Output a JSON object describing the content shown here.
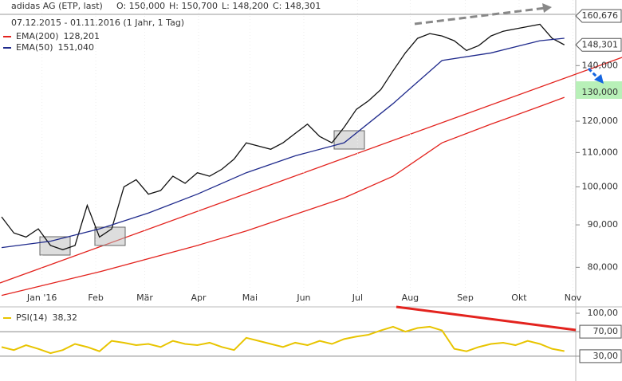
{
  "header": {
    "title": "adidas AG (ETP, last)",
    "ohlc": [
      "O: 150,000",
      "H: 150,700",
      "L: 148,200",
      "C: 148,301"
    ],
    "range": "07.12.2015 - 01.11.2016 (1 Jahr, 1 Tag)"
  },
  "chart_data": [
    {
      "type": "line",
      "log_scale": true,
      "ylim": [
        72000,
        165000
      ],
      "xlim": [
        0,
        46.8
      ],
      "yticks": [
        {
          "value": 80000,
          "label": "80,000"
        },
        {
          "value": 90000,
          "label": "90,000"
        },
        {
          "value": 100000,
          "label": "100,000"
        },
        {
          "value": 110000,
          "label": "110,000"
        },
        {
          "value": 120000,
          "label": "120,000"
        },
        {
          "value": 140000,
          "label": "140,000"
        }
      ],
      "xticks": [
        {
          "value": 3.3,
          "label": "Jan '16"
        },
        {
          "value": 7.7,
          "label": "Feb"
        },
        {
          "value": 11.7,
          "label": "Mär"
        },
        {
          "value": 16.1,
          "label": "Apr"
        },
        {
          "value": 20.3,
          "label": "Mai"
        },
        {
          "value": 24.7,
          "label": "Jun"
        },
        {
          "value": 29.1,
          "label": "Jul"
        },
        {
          "value": 33.4,
          "label": "Aug"
        },
        {
          "value": 37.9,
          "label": "Sep"
        },
        {
          "value": 42.3,
          "label": "Okt"
        },
        {
          "value": 46.7,
          "label": "Nov"
        }
      ],
      "price_tags": [
        {
          "value": 160676,
          "label": "160,676"
        },
        {
          "value": 148301,
          "label": "148,301"
        },
        {
          "value": 130000,
          "label": "130,000"
        }
      ],
      "series": [
        {
          "name": "adidas AG",
          "color": "#111111",
          "x": [
            0,
            1,
            2,
            3,
            4,
            5,
            6,
            7,
            8,
            9,
            10,
            11,
            12,
            13,
            14,
            15,
            16,
            17,
            18,
            19,
            20,
            21,
            22,
            23,
            24,
            25,
            26,
            27,
            28,
            29,
            30,
            31,
            32,
            33,
            34,
            35,
            36,
            37,
            38,
            39,
            40,
            41,
            42,
            43,
            44,
            45,
            46
          ],
          "values": [
            92000,
            88000,
            87000,
            89000,
            85000,
            84000,
            85000,
            95000,
            87000,
            89000,
            100000,
            102000,
            98000,
            99000,
            103000,
            101000,
            104000,
            103000,
            105000,
            108000,
            113000,
            112000,
            111000,
            113000,
            116000,
            119000,
            115000,
            113000,
            118000,
            124000,
            127000,
            131000,
            138000,
            145000,
            151000,
            153000,
            152000,
            150000,
            146000,
            148000,
            152000,
            154000,
            155000,
            156000,
            157000,
            151000,
            148301
          ]
        },
        {
          "name": "EMA(200)",
          "legend_value": "128,201",
          "color": "#e3231e",
          "x": [
            0,
            8,
            16,
            20,
            28,
            32,
            36,
            40,
            44,
            46
          ],
          "values": [
            74000,
            79000,
            85000,
            88500,
            97000,
            103000,
            113000,
            119000,
            125000,
            128201
          ]
        },
        {
          "name": "EMA(50)",
          "legend_value": "151,040",
          "color": "#1f2a8c",
          "x": [
            0,
            4,
            8,
            12,
            16,
            20,
            24,
            28,
            32,
            36,
            40,
            44,
            46
          ],
          "values": [
            84500,
            86000,
            89000,
            93000,
            98000,
            104000,
            109000,
            113000,
            126000,
            142000,
            145000,
            150000,
            151040
          ]
        }
      ]
    },
    {
      "type": "line",
      "ylim": [
        0,
        100
      ],
      "xlim": [
        0,
        46.8
      ],
      "yticks": [
        {
          "value": 100,
          "label": "100,00"
        },
        {
          "value": 70,
          "label": "70,00"
        },
        {
          "value": 30,
          "label": "30,00"
        }
      ],
      "series": [
        {
          "name": "PSI(14)",
          "legend_value": "38,32",
          "color": "#e8c400",
          "x": [
            0,
            1,
            2,
            3,
            4,
            5,
            6,
            7,
            8,
            9,
            10,
            11,
            12,
            13,
            14,
            15,
            16,
            17,
            18,
            19,
            20,
            21,
            22,
            23,
            24,
            25,
            26,
            27,
            28,
            29,
            30,
            31,
            32,
            33,
            34,
            35,
            36,
            37,
            38,
            39,
            40,
            41,
            42,
            43,
            44,
            45,
            46
          ],
          "values": [
            45,
            40,
            48,
            42,
            35,
            40,
            50,
            45,
            38,
            55,
            52,
            48,
            50,
            45,
            55,
            50,
            48,
            52,
            45,
            40,
            60,
            55,
            50,
            45,
            52,
            48,
            55,
            50,
            58,
            62,
            65,
            72,
            78,
            70,
            76,
            78,
            72,
            42,
            38,
            45,
            50,
            52,
            48,
            55,
            50,
            42,
            38.32
          ]
        }
      ]
    }
  ]
}
